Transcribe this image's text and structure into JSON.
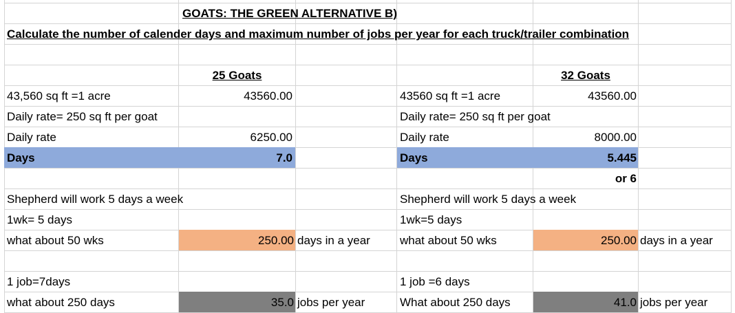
{
  "colors": {
    "days_fill": "#8eaadb",
    "year_fill": "#f4b183",
    "jobs_fill": "#7f7f7f",
    "grid": "#d4d4d4"
  },
  "title": "GOATS: THE GREEN ALTERNATIVE B)",
  "instruction": "Calculate the number of calender days and maximum number of jobs per year for each truck/trailer combination",
  "left": {
    "header": "25 Goats",
    "acre_label": "43,560 sq ft =1 acre",
    "acre_value": "43560.00",
    "daily_rate_note": "Daily rate= 250 sq ft per goat",
    "daily_rate_label": "Daily rate",
    "daily_rate_value": "6250.00",
    "days_label": "Days",
    "days_value": "7.0",
    "work_note": "Shepherd will work 5 days  a week",
    "week_note": "1wk= 5 days",
    "weeks_label": "what about 50 wks",
    "year_days_value": "250.00",
    "year_days_unit": "days in a year",
    "job_note": "1 job=7days",
    "days250_label": "what about 250 days",
    "jobs_value": "35.0",
    "jobs_unit": "jobs per year"
  },
  "right": {
    "header": "32 Goats",
    "acre_label": "43560 sq ft =1 acre",
    "acre_value": "43560.00",
    "daily_rate_note": "Daily rate= 250 sq ft per goat",
    "daily_rate_label": "Daily rate",
    "daily_rate_value": "8000.00",
    "days_label": "Days",
    "days_value": "5.445",
    "days_rounded": "or 6",
    "work_note": "Shepherd will work 5 days a week",
    "week_note": "1wk=5 days",
    "weeks_label": "what about 50 wks",
    "year_days_value": "250.00",
    "year_days_unit": "days in a year",
    "job_note": "1 job =6 days",
    "days250_label": "What about 250 days",
    "jobs_value": "41.0",
    "jobs_unit": "jobs per year"
  }
}
